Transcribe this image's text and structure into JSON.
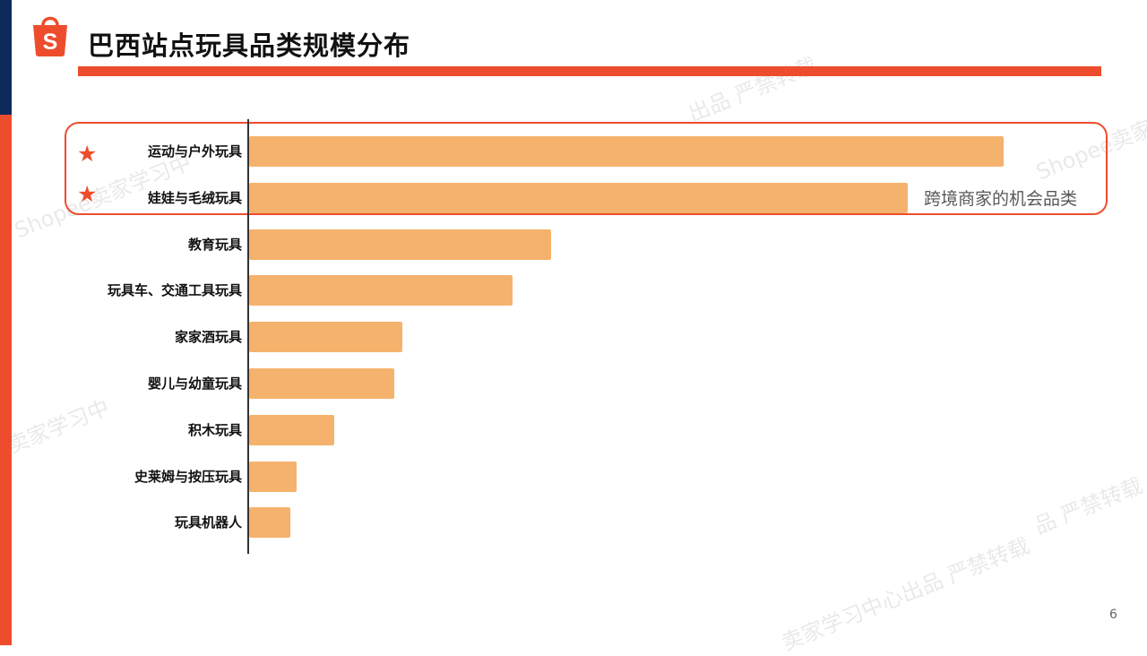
{
  "slide": {
    "title": "巴西站点玩具品类规模分布",
    "callout": "跨境商家的机会品类",
    "page_number": "6",
    "star_glyph": "★",
    "logo_letter": "S"
  },
  "colors": {
    "brand": "#ee4d2d",
    "navy": "#0d2a5c",
    "bar": "#f5b26d",
    "text": "#111111"
  },
  "watermarks": [
    "Shopee卖家学习中",
    "卖家学习中",
    "出品 严禁转载",
    "Shopee卖家",
    "品 严禁转载",
    "卖家学习中心出品 严禁转载"
  ],
  "chart_data": {
    "type": "bar",
    "orientation": "horizontal",
    "title": "",
    "xlabel": "",
    "ylabel": "",
    "categories": [
      "运动与户外玩具",
      "娃娃与毛绒玩具",
      "教育玩具",
      "玩具车、交通工具玩具",
      "家家酒玩具",
      "婴儿与幼童玩具",
      "积木玩具",
      "史莱姆与按压玩具",
      "玩具机器人"
    ],
    "values": [
      842,
      735,
      337,
      294,
      171,
      162,
      95,
      53,
      46
    ],
    "xlim": [
      0,
      1000
    ],
    "highlighted": [
      "运动与户外玩具",
      "娃娃与毛绒玩具"
    ],
    "grid": false,
    "legend": "none"
  }
}
